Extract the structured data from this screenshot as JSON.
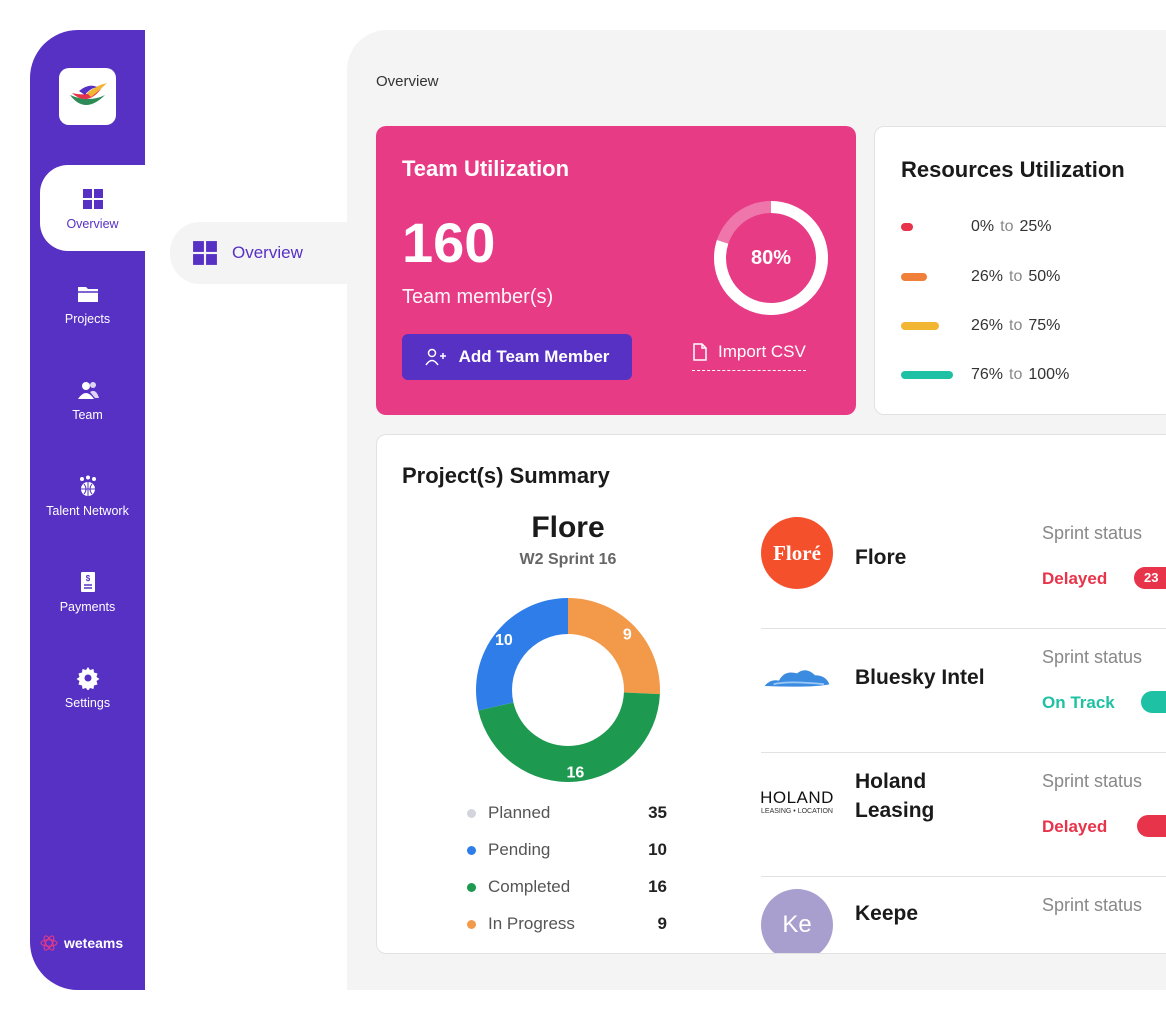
{
  "sidebar": {
    "items": [
      {
        "label": "Overview"
      },
      {
        "label": "Projects"
      },
      {
        "label": "Team"
      },
      {
        "label": "Talent Network"
      },
      {
        "label": "Payments"
      },
      {
        "label": "Settings"
      }
    ],
    "brand": "weteams"
  },
  "subnav": {
    "label": "Overview"
  },
  "breadcrumb": "Overview",
  "team_card": {
    "title": "Team Utilization",
    "count": "160",
    "subtitle": "Team member(s)",
    "percent": "80%",
    "percent_value": 0.8,
    "add_label": "Add Team Member",
    "import_label": "Import CSV"
  },
  "resources": {
    "title": "Resources Utilization",
    "ranges": [
      {
        "from": "0%",
        "to": "25%",
        "color": "#e8344a"
      },
      {
        "from": "26%",
        "to": "50%",
        "color": "#f07f3a"
      },
      {
        "from": "26%",
        "to": "75%",
        "color": "#f2b632"
      },
      {
        "from": "76%",
        "to": "100%",
        "color": "#1ec1a4"
      }
    ],
    "to_word": "to"
  },
  "summary": {
    "title": "Project(s) Summary",
    "project": "Flore",
    "sprint": "W2 Sprint 16",
    "legend": [
      {
        "label": "Planned",
        "value": "35",
        "color": "#d4d4dc"
      },
      {
        "label": "Pending",
        "value": "10",
        "color": "#2f7de8"
      },
      {
        "label": "Completed",
        "value": "16",
        "color": "#1e9a50"
      },
      {
        "label": "In Progress",
        "value": "9",
        "color": "#f29a4a"
      }
    ],
    "donut": [
      {
        "label": "In Progress",
        "value": 9,
        "color": "#f29a4a"
      },
      {
        "label": "Completed",
        "value": 16,
        "color": "#1e9a50"
      },
      {
        "label": "Pending",
        "value": 10,
        "color": "#2f7de8"
      }
    ]
  },
  "projects": [
    {
      "name": "Flore",
      "logo_text": "Floré",
      "status_label": "Sprint status",
      "status": "Delayed",
      "status_color": "#e8344a",
      "badge": "23"
    },
    {
      "name": "Bluesky Intel",
      "status_label": "Sprint status",
      "status": "On Track",
      "status_color": "#1ec1a4",
      "badge": ""
    },
    {
      "name": "Holand Leasing",
      "logo_text": "HOLAND",
      "logo_sub": "LEASING • LOCATION",
      "status_label": "Sprint status",
      "status": "Delayed",
      "status_color": "#e8344a",
      "badge": ""
    },
    {
      "name": "Keepe",
      "logo_text": "Ke",
      "status_label": "Sprint status",
      "status": "",
      "status_color": "#e8344a",
      "badge": ""
    }
  ]
}
